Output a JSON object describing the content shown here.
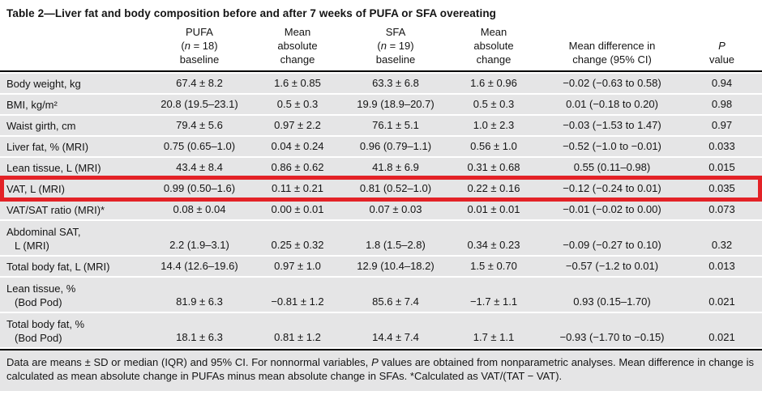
{
  "title": "Table 2—Liver fat and body composition before and after 7 weeks of PUFA or SFA overeating",
  "header": {
    "pufa": {
      "line1": "PUFA",
      "n_open": "(",
      "n": "n",
      "n_rest": " = 18)",
      "line3": "baseline"
    },
    "pufa_change": {
      "line1": "Mean",
      "line2": "absolute",
      "line3": "change"
    },
    "sfa": {
      "line1": "SFA",
      "n_open": "(",
      "n": "n",
      "n_rest": " = 19)",
      "line3": "baseline"
    },
    "sfa_change": {
      "line1": "Mean",
      "line2": "absolute",
      "line3": "change"
    },
    "diff": {
      "line1": "Mean difference in",
      "line2": "change (95% CI)"
    },
    "p": {
      "line1": "P",
      "line2": "value"
    }
  },
  "rows": [
    {
      "label": "Body weight, kg",
      "c1": "67.4 ± 8.2",
      "c2": "1.6 ± 0.85",
      "c3": "63.3 ± 6.8",
      "c4": "1.6 ± 0.96",
      "c5": "−0.02 (−0.63 to 0.58)",
      "c6": "0.94"
    },
    {
      "label": "BMI, kg/m²",
      "c1": "20.8 (19.5–23.1)",
      "c2": "0.5 ± 0.3",
      "c3": "19.9 (18.9–20.7)",
      "c4": "0.5 ± 0.3",
      "c5": "0.01 (−0.18 to 0.20)",
      "c6": "0.98"
    },
    {
      "label": "Waist girth, cm",
      "c1": "79.4 ± 5.6",
      "c2": "0.97 ± 2.2",
      "c3": "76.1 ± 5.1",
      "c4": "1.0 ± 2.3",
      "c5": "−0.03 (−1.53 to 1.47)",
      "c6": "0.97"
    },
    {
      "label": "Liver fat, % (MRI)",
      "c1": "0.75 (0.65–1.0)",
      "c2": "0.04 ± 0.24",
      "c3": "0.96 (0.79–1.1)",
      "c4": "0.56 ± 1.0",
      "c5": "−0.52 (−1.0 to −0.01)",
      "c6": "0.033"
    },
    {
      "label": "Lean tissue, L (MRI)",
      "c1": "43.4 ± 8.4",
      "c2": "0.86 ± 0.62",
      "c3": "41.8 ± 6.9",
      "c4": "0.31 ± 0.68",
      "c5": "0.55 (0.11–0.98)",
      "c6": "0.015"
    },
    {
      "label": "VAT, L (MRI)",
      "c1": "0.99 (0.50–1.6)",
      "c2": "0.11 ± 0.21",
      "c3": "0.81 (0.52–1.0)",
      "c4": "0.22 ± 0.16",
      "c5": "−0.12 (−0.24 to 0.01)",
      "c6": "0.035",
      "highlighted": true
    },
    {
      "label": "VAT/SAT ratio (MRI)*",
      "c1": "0.08 ± 0.04",
      "c2": "0.00 ± 0.01",
      "c3": "0.07 ± 0.03",
      "c4": "0.01 ± 0.01",
      "c5": "−0.01 (−0.02 to 0.00)",
      "c6": "0.073"
    },
    {
      "label": "Abdominal SAT,",
      "label2": "L (MRI)",
      "c1": "2.2 (1.9–3.1)",
      "c2": "0.25 ± 0.32",
      "c3": "1.8 (1.5–2.8)",
      "c4": "0.34 ± 0.23",
      "c5": "−0.09 (−0.27 to 0.10)",
      "c6": "0.32"
    },
    {
      "label": "Total body fat, L (MRI)",
      "c1": "14.4 (12.6–19.6)",
      "c2": "0.97 ± 1.0",
      "c3": "12.9 (10.4–18.2)",
      "c4": "1.5 ± 0.70",
      "c5": "−0.57 (−1.2 to 0.01)",
      "c6": "0.013"
    },
    {
      "label": "Lean tissue, %",
      "label2": "(Bod Pod)",
      "c1": "81.9 ± 6.3",
      "c2": "−0.81 ± 1.2",
      "c3": "85.6 ± 7.4",
      "c4": "−1.7 ± 1.1",
      "c5": "0.93 (0.15–1.70)",
      "c6": "0.021"
    },
    {
      "label": "Total body fat, %",
      "label2": "(Bod Pod)",
      "c1": "18.1 ± 6.3",
      "c2": "0.81 ± 1.2",
      "c3": "14.4 ± 7.4",
      "c4": "1.7 ± 1.1",
      "c5": "−0.93 (−1.70 to −0.15)",
      "c6": "0.021"
    }
  ],
  "footnote": {
    "seg1": "Data are means ± SD or median (IQR) and 95% CI. For nonnormal variables, ",
    "p": "P",
    "seg2": " values are obtained from nonparametric analyses. Mean difference in change is calculated as mean absolute change in PUFAs minus mean absolute change in SFAs. *Calculated as VAT/(TAT − VAT)."
  },
  "highlight_color": "#e32227",
  "row_background_color": "#e5e5e6"
}
